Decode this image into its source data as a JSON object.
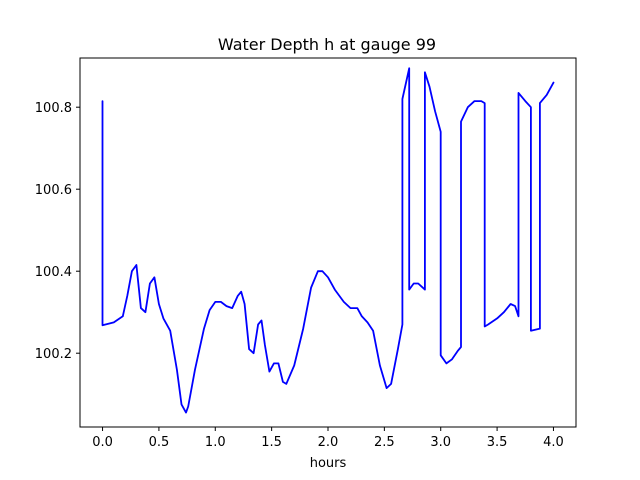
{
  "chart_data": {
    "type": "line",
    "title": "Water Depth h at gauge 99",
    "xlabel": "hours",
    "ylabel": "",
    "xlim": [
      -0.2,
      4.2
    ],
    "ylim": [
      100.02,
      100.92
    ],
    "grid": false,
    "legend": "none",
    "x_ticks": [
      {
        "value": 0.0,
        "label": "0.0"
      },
      {
        "value": 0.5,
        "label": "0.5"
      },
      {
        "value": 1.0,
        "label": "1.0"
      },
      {
        "value": 1.5,
        "label": "1.5"
      },
      {
        "value": 2.0,
        "label": "2.0"
      },
      {
        "value": 2.5,
        "label": "2.5"
      },
      {
        "value": 3.0,
        "label": "3.0"
      },
      {
        "value": 3.5,
        "label": "3.5"
      },
      {
        "value": 4.0,
        "label": "4.0"
      }
    ],
    "y_ticks": [
      {
        "value": 100.2,
        "label": "100.2"
      },
      {
        "value": 100.4,
        "label": "100.4"
      },
      {
        "value": 100.6,
        "label": "100.6"
      },
      {
        "value": 100.8,
        "label": "100.8"
      }
    ],
    "series": [
      {
        "color": "#0000ff",
        "x": [
          0.0,
          0.0,
          0.1,
          0.18,
          0.22,
          0.26,
          0.3,
          0.34,
          0.38,
          0.42,
          0.46,
          0.5,
          0.54,
          0.6,
          0.66,
          0.7,
          0.74,
          0.76,
          0.82,
          0.9,
          0.95,
          1.0,
          1.05,
          1.1,
          1.15,
          1.2,
          1.23,
          1.26,
          1.3,
          1.34,
          1.38,
          1.41,
          1.44,
          1.48,
          1.52,
          1.56,
          1.6,
          1.63,
          1.7,
          1.78,
          1.85,
          1.91,
          1.95,
          2.0,
          2.06,
          2.14,
          2.2,
          2.26,
          2.3,
          2.35,
          2.4,
          2.46,
          2.52,
          2.56,
          2.62,
          2.66,
          2.66,
          2.72,
          2.72,
          2.76,
          2.8,
          2.84,
          2.86,
          2.86,
          2.9,
          2.95,
          3.0,
          3.0,
          3.05,
          3.1,
          3.15,
          3.18,
          3.18,
          3.24,
          3.3,
          3.36,
          3.39,
          3.39,
          3.42,
          3.5,
          3.56,
          3.62,
          3.66,
          3.69,
          3.69,
          3.75,
          3.8,
          3.8,
          3.88,
          3.88,
          3.94,
          4.0
        ],
        "y": [
          100.815,
          100.268,
          100.275,
          100.29,
          100.34,
          100.4,
          100.415,
          100.31,
          100.3,
          100.37,
          100.385,
          100.32,
          100.285,
          100.255,
          100.16,
          100.075,
          100.055,
          100.07,
          100.16,
          100.26,
          100.305,
          100.325,
          100.325,
          100.315,
          100.31,
          100.34,
          100.35,
          100.32,
          100.21,
          100.2,
          100.27,
          100.28,
          100.22,
          100.155,
          100.175,
          100.175,
          100.13,
          100.125,
          100.17,
          100.26,
          100.36,
          100.4,
          100.4,
          100.385,
          100.355,
          100.325,
          100.31,
          100.31,
          100.29,
          100.275,
          100.255,
          100.17,
          100.115,
          100.125,
          100.21,
          100.27,
          100.82,
          100.895,
          100.355,
          100.37,
          100.37,
          100.36,
          100.355,
          100.885,
          100.85,
          100.79,
          100.74,
          100.195,
          100.175,
          100.185,
          100.205,
          100.215,
          100.765,
          100.8,
          100.815,
          100.815,
          100.81,
          100.265,
          100.27,
          100.285,
          100.3,
          100.32,
          100.315,
          100.29,
          100.835,
          100.815,
          100.8,
          100.255,
          100.26,
          100.81,
          100.83,
          100.86
        ]
      }
    ]
  }
}
